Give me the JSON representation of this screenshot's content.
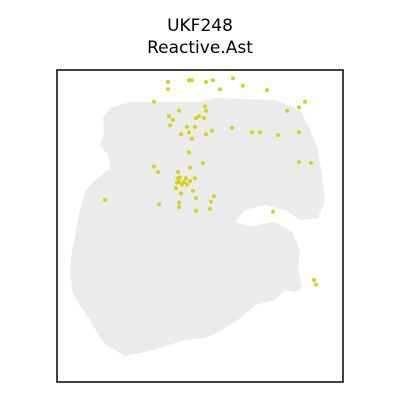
{
  "chart_data": {
    "type": "scatter",
    "title": "UKF248",
    "subtitle": "Reactive.Ast",
    "xlabel": "",
    "ylabel": "",
    "grid": false,
    "colors": {
      "tissue": "#ebebeb",
      "highlight": "#d4d40f",
      "frame": "#000000"
    },
    "highlighted_spots": [
      [
        -32,
        20
      ],
      [
        -11,
        22
      ],
      [
        -8,
        22
      ],
      [
        6,
        20
      ],
      [
        13,
        22
      ],
      [
        33,
        24
      ],
      [
        -32,
        12
      ],
      [
        20,
        12
      ],
      [
        43,
        16
      ],
      [
        67,
        11
      ],
      [
        -46,
        -2
      ],
      [
        99,
        -8
      ],
      [
        105,
        -2
      ],
      [
        5,
        -7
      ],
      [
        87,
        -12
      ],
      [
        -21,
        -12
      ],
      [
        6,
        -12
      ],
      [
        -31,
        -18
      ],
      [
        -27,
        -22
      ],
      [
        -4,
        -20
      ],
      [
        -1,
        -18
      ],
      [
        4,
        -20
      ],
      [
        -30,
        -28
      ],
      [
        32,
        -31
      ],
      [
        -13,
        -30
      ],
      [
        -5,
        -30
      ],
      [
        -11,
        -36
      ],
      [
        -19,
        -38
      ],
      [
        12,
        -34
      ],
      [
        6,
        -38
      ],
      [
        -8,
        -43
      ],
      [
        52,
        -36
      ],
      [
        60,
        -36
      ],
      [
        99,
        -36
      ],
      [
        78,
        -39
      ],
      [
        -11,
        -58
      ],
      [
        3,
        -70
      ],
      [
        -10,
        -75
      ],
      [
        -20,
        -86
      ],
      [
        -22,
        -80
      ],
      [
        -21,
        -91
      ],
      [
        -16,
        -91
      ],
      [
        -18,
        -94
      ],
      [
        -13,
        -94
      ],
      [
        -23,
        -92
      ],
      [
        -24,
        -98
      ],
      [
        -19,
        -104
      ],
      [
        -21,
        -114
      ],
      [
        -21,
        -119
      ],
      [
        -7,
        -101
      ],
      [
        -4,
        -109
      ],
      [
        11,
        -113
      ],
      [
        14,
        -107
      ],
      [
        -95,
        -111
      ],
      [
        -41,
        -116
      ],
      [
        -4,
        -123
      ],
      [
        10,
        -121
      ],
      [
        73,
        -124
      ],
      [
        -46,
        -74
      ],
      [
        111,
        -70
      ],
      [
        99,
        -69
      ],
      [
        -42,
        -80
      ],
      [
        -22,
        -87
      ],
      [
        -14,
        -87
      ],
      [
        -5,
        -87
      ],
      [
        -10,
        -90
      ],
      [
        114,
        -200
      ],
      [
        116,
        -205
      ]
    ]
  }
}
